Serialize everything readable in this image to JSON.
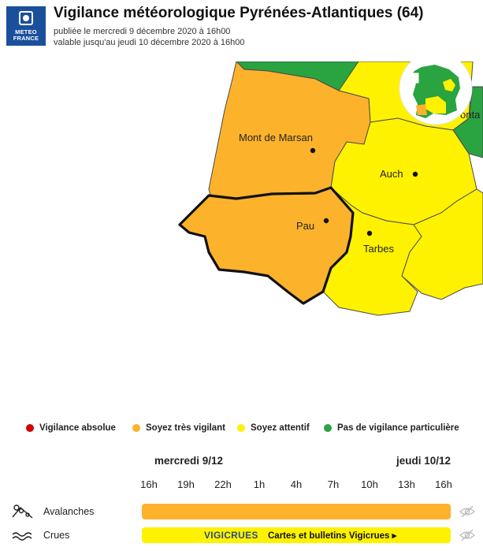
{
  "header": {
    "logo_line1": "METEO",
    "logo_line2": "FRANCE",
    "title": "Vigilance météorologique Pyrénées-Atlantiques (64)",
    "published": "publiée le mercredi 9 décembre 2020 à 16h00",
    "valid_until": "valable jusqu'au jeudi 10 décembre 2020 à 16h00"
  },
  "map": {
    "cities": {
      "mont_de_marsan": "Mont de Marsan",
      "auch": "Auch",
      "pau": "Pau",
      "tarbes": "Tarbes",
      "montauban_partial": "onta"
    },
    "colors": {
      "orange": "#fdb22c",
      "yellow": "#fff200",
      "green": "#2aa341",
      "red": "#d40000"
    }
  },
  "legend": [
    {
      "label": "Vigilance absolue",
      "color": "#d40000"
    },
    {
      "label": "Soyez très vigilant",
      "color": "#fdb22c"
    },
    {
      "label": "Soyez attentif",
      "color": "#fff200"
    },
    {
      "label": "Pas de vigilance particulière",
      "color": "#2aa341"
    }
  ],
  "timeline": {
    "day1": "mercredi 9/12",
    "day2": "jeudi 10/12",
    "hours": [
      "16h",
      "19h",
      "22h",
      "1h",
      "4h",
      "7h",
      "10h",
      "13h",
      "16h"
    ]
  },
  "phenomena": [
    {
      "label": "Avalanches",
      "icon": "avalanche-icon",
      "level": "orange"
    },
    {
      "label": "Crues",
      "icon": "flood-icon",
      "level": "yellow",
      "vigicrues_logo": "VIGICRUES",
      "link": "Cartes et bulletins Vigicrues ▸"
    }
  ]
}
